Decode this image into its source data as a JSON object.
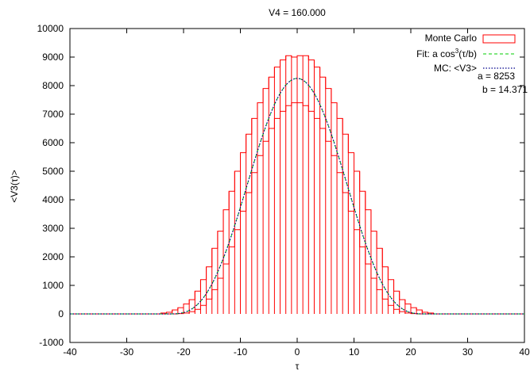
{
  "chart_data": {
    "type": "bar",
    "title": "V4 = 160.000",
    "xlabel": "τ",
    "ylabel": "<V3(τ)>",
    "xlim": [
      -40,
      40
    ],
    "ylim": [
      -1000,
      10000
    ],
    "xticks": [
      -40,
      -30,
      -20,
      -10,
      0,
      10,
      20,
      30,
      40
    ],
    "yticks": [
      -1000,
      0,
      1000,
      2000,
      3000,
      4000,
      5000,
      6000,
      7000,
      8000,
      9000,
      10000
    ],
    "grid": false,
    "legend_position": "top-right",
    "colors": {
      "histogram": "#ff0000",
      "fit": "#00cc00",
      "mc": "#00008b",
      "axes": "#000000"
    },
    "series": [
      {
        "name": "Monte Carlo",
        "kind": "histogram-steps",
        "bin_lo": [
          -24,
          -23,
          -22,
          -21,
          -20,
          -19,
          -18,
          -17,
          -16,
          -15,
          -14,
          -13,
          -12,
          -11,
          -10,
          -9,
          -8,
          -7,
          -6,
          -5,
          -4,
          -3,
          -2,
          -1,
          0,
          1,
          2,
          3,
          4,
          5,
          6,
          7,
          8,
          9,
          10,
          11,
          12,
          13,
          14,
          15,
          16,
          17,
          18,
          19,
          20,
          21,
          22,
          23
        ],
        "bin_hi": [
          -23,
          -22,
          -21,
          -20,
          -19,
          -18,
          -17,
          -16,
          -15,
          -14,
          -13,
          -12,
          -11,
          -10,
          -9,
          -8,
          -7,
          -6,
          -5,
          -4,
          -3,
          -2,
          -1,
          0,
          1,
          2,
          3,
          4,
          5,
          6,
          7,
          8,
          9,
          10,
          11,
          12,
          13,
          14,
          15,
          16,
          17,
          18,
          19,
          20,
          21,
          22,
          23,
          24
        ],
        "upper": [
          30,
          60,
          140,
          220,
          350,
          500,
          800,
          1200,
          1650,
          2300,
          2900,
          3650,
          4300,
          5000,
          5650,
          6300,
          6850,
          7400,
          7900,
          8300,
          8650,
          8900,
          9050,
          9000,
          9050,
          9050,
          8900,
          8650,
          8300,
          7900,
          7400,
          6850,
          6300,
          5650,
          5000,
          4300,
          3650,
          2900,
          2300,
          1650,
          1200,
          800,
          500,
          350,
          220,
          140,
          60,
          30
        ],
        "lower": [
          0,
          0,
          0,
          10,
          30,
          80,
          160,
          300,
          520,
          850,
          1250,
          1750,
          2350,
          2950,
          3600,
          4250,
          4950,
          5550,
          6050,
          6500,
          6850,
          7100,
          7300,
          7400,
          7400,
          7300,
          7100,
          6850,
          6500,
          6050,
          5550,
          4950,
          4250,
          3600,
          2950,
          2350,
          1750,
          1250,
          850,
          520,
          300,
          160,
          80,
          30,
          10,
          0,
          0,
          0
        ]
      },
      {
        "name": "Fit: a cos³(τ/b)",
        "kind": "fit-line",
        "function": "a*cos(x/b)^3 for |x| <= pi*b/2, else 0",
        "params": {
          "a": 8253,
          "b": 14.371
        }
      },
      {
        "name": "MC: <V3>",
        "kind": "mean-line",
        "function": "a*cos(x/b)^3 for |x| <= pi*b/2, else 0",
        "params": {
          "a": 8253,
          "b": 14.371
        }
      }
    ],
    "legend": {
      "mc_label": "Monte Carlo",
      "fit_label_prefix": "Fit: a cos",
      "fit_label_sup": "3",
      "fit_label_suffix": "(τ/b)",
      "mean_label": "MC: <V3>"
    },
    "annotations": {
      "a_text": "a = 8253",
      "b_text": "b = 14.371"
    }
  }
}
